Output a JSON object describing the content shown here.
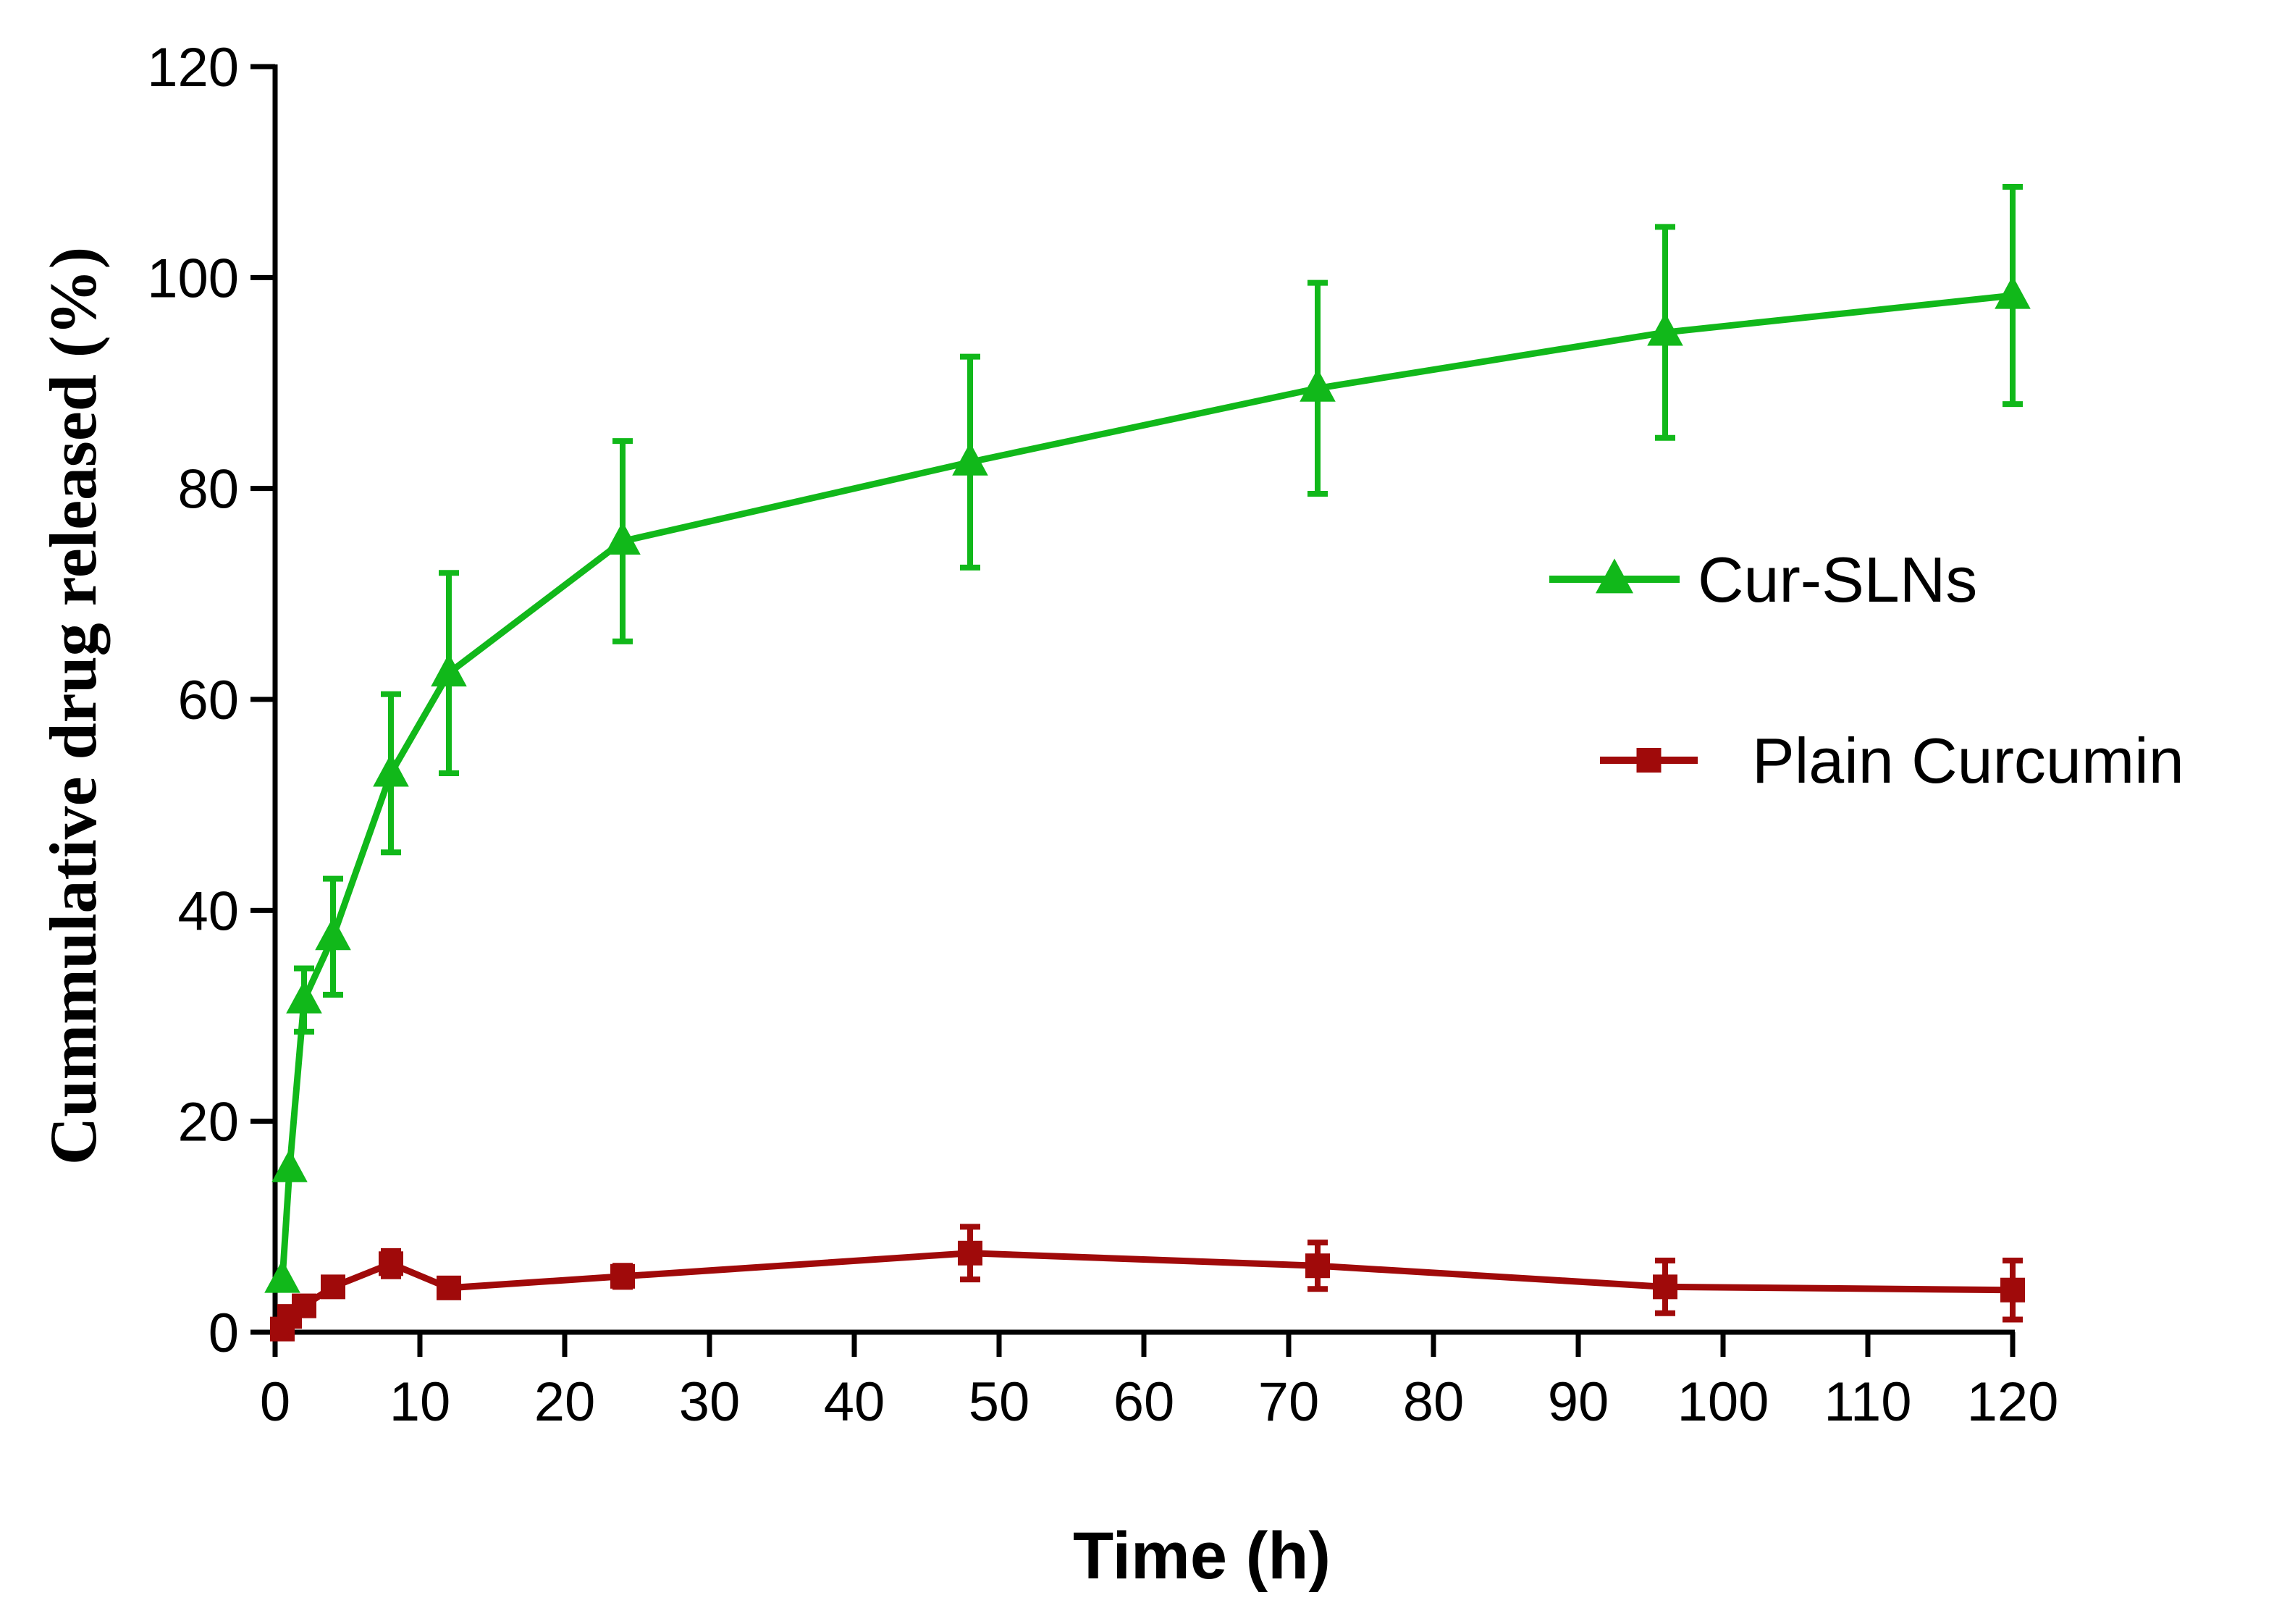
{
  "chart_data": {
    "type": "line",
    "title": "",
    "xlabel": "Time (h)",
    "ylabel": "Cummulative drug released (%)",
    "xlim": [
      0,
      120
    ],
    "ylim": [
      0,
      120
    ],
    "xticks": [
      0,
      10,
      20,
      30,
      40,
      50,
      60,
      70,
      80,
      90,
      100,
      110,
      120
    ],
    "yticks": [
      0,
      20,
      40,
      60,
      80,
      100,
      120
    ],
    "grid": false,
    "legend_position": "right",
    "series": [
      {
        "name": "Cur-SLNs",
        "color": "#11b81a",
        "marker": "triangle",
        "x": [
          0.5,
          1,
          2,
          4,
          8,
          12,
          24,
          48,
          72,
          96,
          120
        ],
        "y": [
          5,
          15.5,
          31.5,
          37.5,
          53,
          62.5,
          75,
          82.5,
          89.5,
          94.8,
          98.3
        ],
        "err": [
          0,
          0,
          3,
          5.5,
          7.5,
          9.5,
          9.5,
          10,
          10,
          10,
          10.3
        ]
      },
      {
        "name": "Plain Curcumin",
        "color": "#a00a0a",
        "marker": "square",
        "x": [
          0.5,
          1,
          2,
          4,
          8,
          12,
          24,
          48,
          72,
          96,
          120
        ],
        "y": [
          0.3,
          1.5,
          2.5,
          4.3,
          6.5,
          4.2,
          5.3,
          7.5,
          6.3,
          4.3,
          4
        ],
        "err": [
          0,
          0,
          0,
          0.8,
          1.2,
          0.8,
          1,
          2.5,
          2.2,
          2.5,
          2.8
        ]
      }
    ]
  }
}
